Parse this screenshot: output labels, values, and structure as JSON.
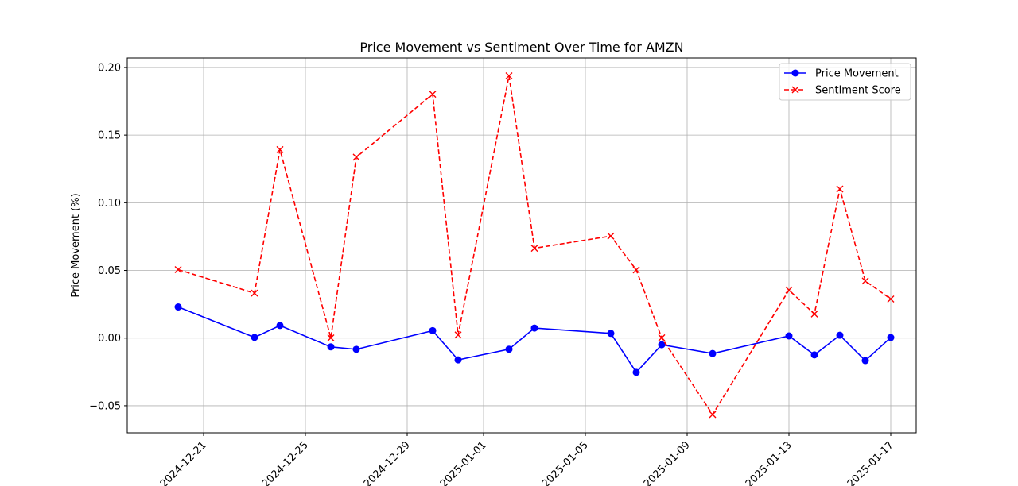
{
  "chart_data": {
    "type": "line",
    "title": "Price Movement vs Sentiment Over Time for AMZN",
    "xlabel": "",
    "ylabel": "Price Movement (%)",
    "xlim": [
      "2024-12-18",
      "2025-01-18"
    ],
    "ylim": [
      -0.07,
      0.207
    ],
    "grid": true,
    "legend_position": "top-right",
    "x_ticks": [
      "2024-12-21",
      "2024-12-25",
      "2024-12-29",
      "2025-01-01",
      "2025-01-05",
      "2025-01-09",
      "2025-01-13",
      "2025-01-17"
    ],
    "y_ticks": [
      -0.05,
      0.0,
      0.05,
      0.1,
      0.15,
      0.2
    ],
    "y_tick_labels": [
      "−0.05",
      "0.00",
      "0.05",
      "0.10",
      "0.15",
      "0.20"
    ],
    "series": [
      {
        "name": "Price Movement",
        "color": "#0000ff",
        "marker": "circle",
        "line_style": "solid",
        "points": [
          {
            "x": "2024-12-20",
            "y": 0.023
          },
          {
            "x": "2024-12-23",
            "y": 0.0005
          },
          {
            "x": "2024-12-24",
            "y": 0.0093
          },
          {
            "x": "2024-12-26",
            "y": -0.0065
          },
          {
            "x": "2024-12-27",
            "y": -0.0083
          },
          {
            "x": "2024-12-30",
            "y": 0.0055
          },
          {
            "x": "2024-12-31",
            "y": -0.0161
          },
          {
            "x": "2025-01-02",
            "y": -0.0082
          },
          {
            "x": "2025-01-03",
            "y": 0.0074
          },
          {
            "x": "2025-01-06",
            "y": 0.0035
          },
          {
            "x": "2025-01-07",
            "y": -0.0253
          },
          {
            "x": "2025-01-08",
            "y": -0.0049
          },
          {
            "x": "2025-01-10",
            "y": -0.0114
          },
          {
            "x": "2025-01-13",
            "y": 0.0016
          },
          {
            "x": "2025-01-14",
            "y": -0.0124
          },
          {
            "x": "2025-01-15",
            "y": 0.0021
          },
          {
            "x": "2025-01-16",
            "y": -0.0166
          },
          {
            "x": "2025-01-17",
            "y": 0.0004
          }
        ]
      },
      {
        "name": "Sentiment Score",
        "color": "#ff0000",
        "marker": "x",
        "line_style": "dashed",
        "points": [
          {
            "x": "2024-12-20",
            "y": 0.0506
          },
          {
            "x": "2024-12-23",
            "y": 0.0332
          },
          {
            "x": "2024-12-24",
            "y": 0.1393
          },
          {
            "x": "2024-12-26",
            "y": 0.0001
          },
          {
            "x": "2024-12-27",
            "y": 0.1337
          },
          {
            "x": "2024-12-30",
            "y": 0.1802
          },
          {
            "x": "2024-12-31",
            "y": 0.0023
          },
          {
            "x": "2025-01-02",
            "y": 0.1938
          },
          {
            "x": "2025-01-03",
            "y": 0.0664
          },
          {
            "x": "2025-01-06",
            "y": 0.0754
          },
          {
            "x": "2025-01-07",
            "y": 0.0504
          },
          {
            "x": "2025-01-08",
            "y": 0.0002
          },
          {
            "x": "2025-01-10",
            "y": -0.0565
          },
          {
            "x": "2025-01-13",
            "y": 0.0355
          },
          {
            "x": "2025-01-14",
            "y": 0.0178
          },
          {
            "x": "2025-01-15",
            "y": 0.1102
          },
          {
            "x": "2025-01-16",
            "y": 0.0422
          },
          {
            "x": "2025-01-17",
            "y": 0.0289
          }
        ]
      }
    ]
  }
}
